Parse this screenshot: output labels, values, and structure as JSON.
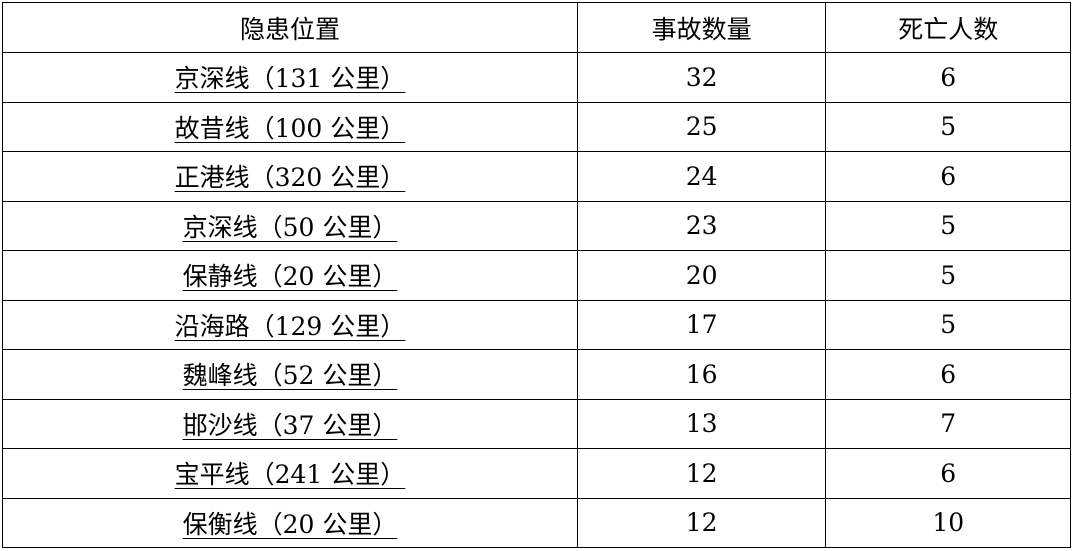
{
  "headers": [
    "隐患位置",
    "事故数量",
    "死亡人数"
  ],
  "rows": [
    {
      "location": "京深线（131 公里）",
      "accidents": "32",
      "deaths": "6"
    },
    {
      "location": "故昔线（100 公里）",
      "accidents": "25",
      "deaths": "5"
    },
    {
      "location": "正港线（320 公里）",
      "accidents": "24",
      "deaths": "6"
    },
    {
      "location": "京深线（50 公里）",
      "accidents": "23",
      "deaths": "5"
    },
    {
      "location": "保静线（20 公里）",
      "accidents": "20",
      "deaths": "5"
    },
    {
      "location": "沿海路（129 公里）",
      "accidents": "17",
      "deaths": "5"
    },
    {
      "location": "魏峰线（52 公里）",
      "accidents": "16",
      "deaths": "6"
    },
    {
      "location": "邯沙线（37 公里）",
      "accidents": "13",
      "deaths": "7"
    },
    {
      "location": "宝平线（241 公里）",
      "accidents": "12",
      "deaths": "6"
    },
    {
      "location": "保衡线（20 公里）",
      "accidents": "12",
      "deaths": "10"
    }
  ]
}
